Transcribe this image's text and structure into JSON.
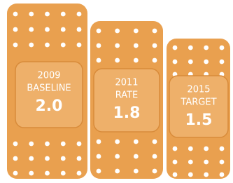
{
  "items": [
    {
      "year": "2009",
      "label": "BASELINE",
      "value": "2.0"
    },
    {
      "year": "2011",
      "label": "RATE",
      "value": "1.8"
    },
    {
      "year": "2015",
      "label": "TARGET",
      "value": "1.5"
    }
  ]
}
